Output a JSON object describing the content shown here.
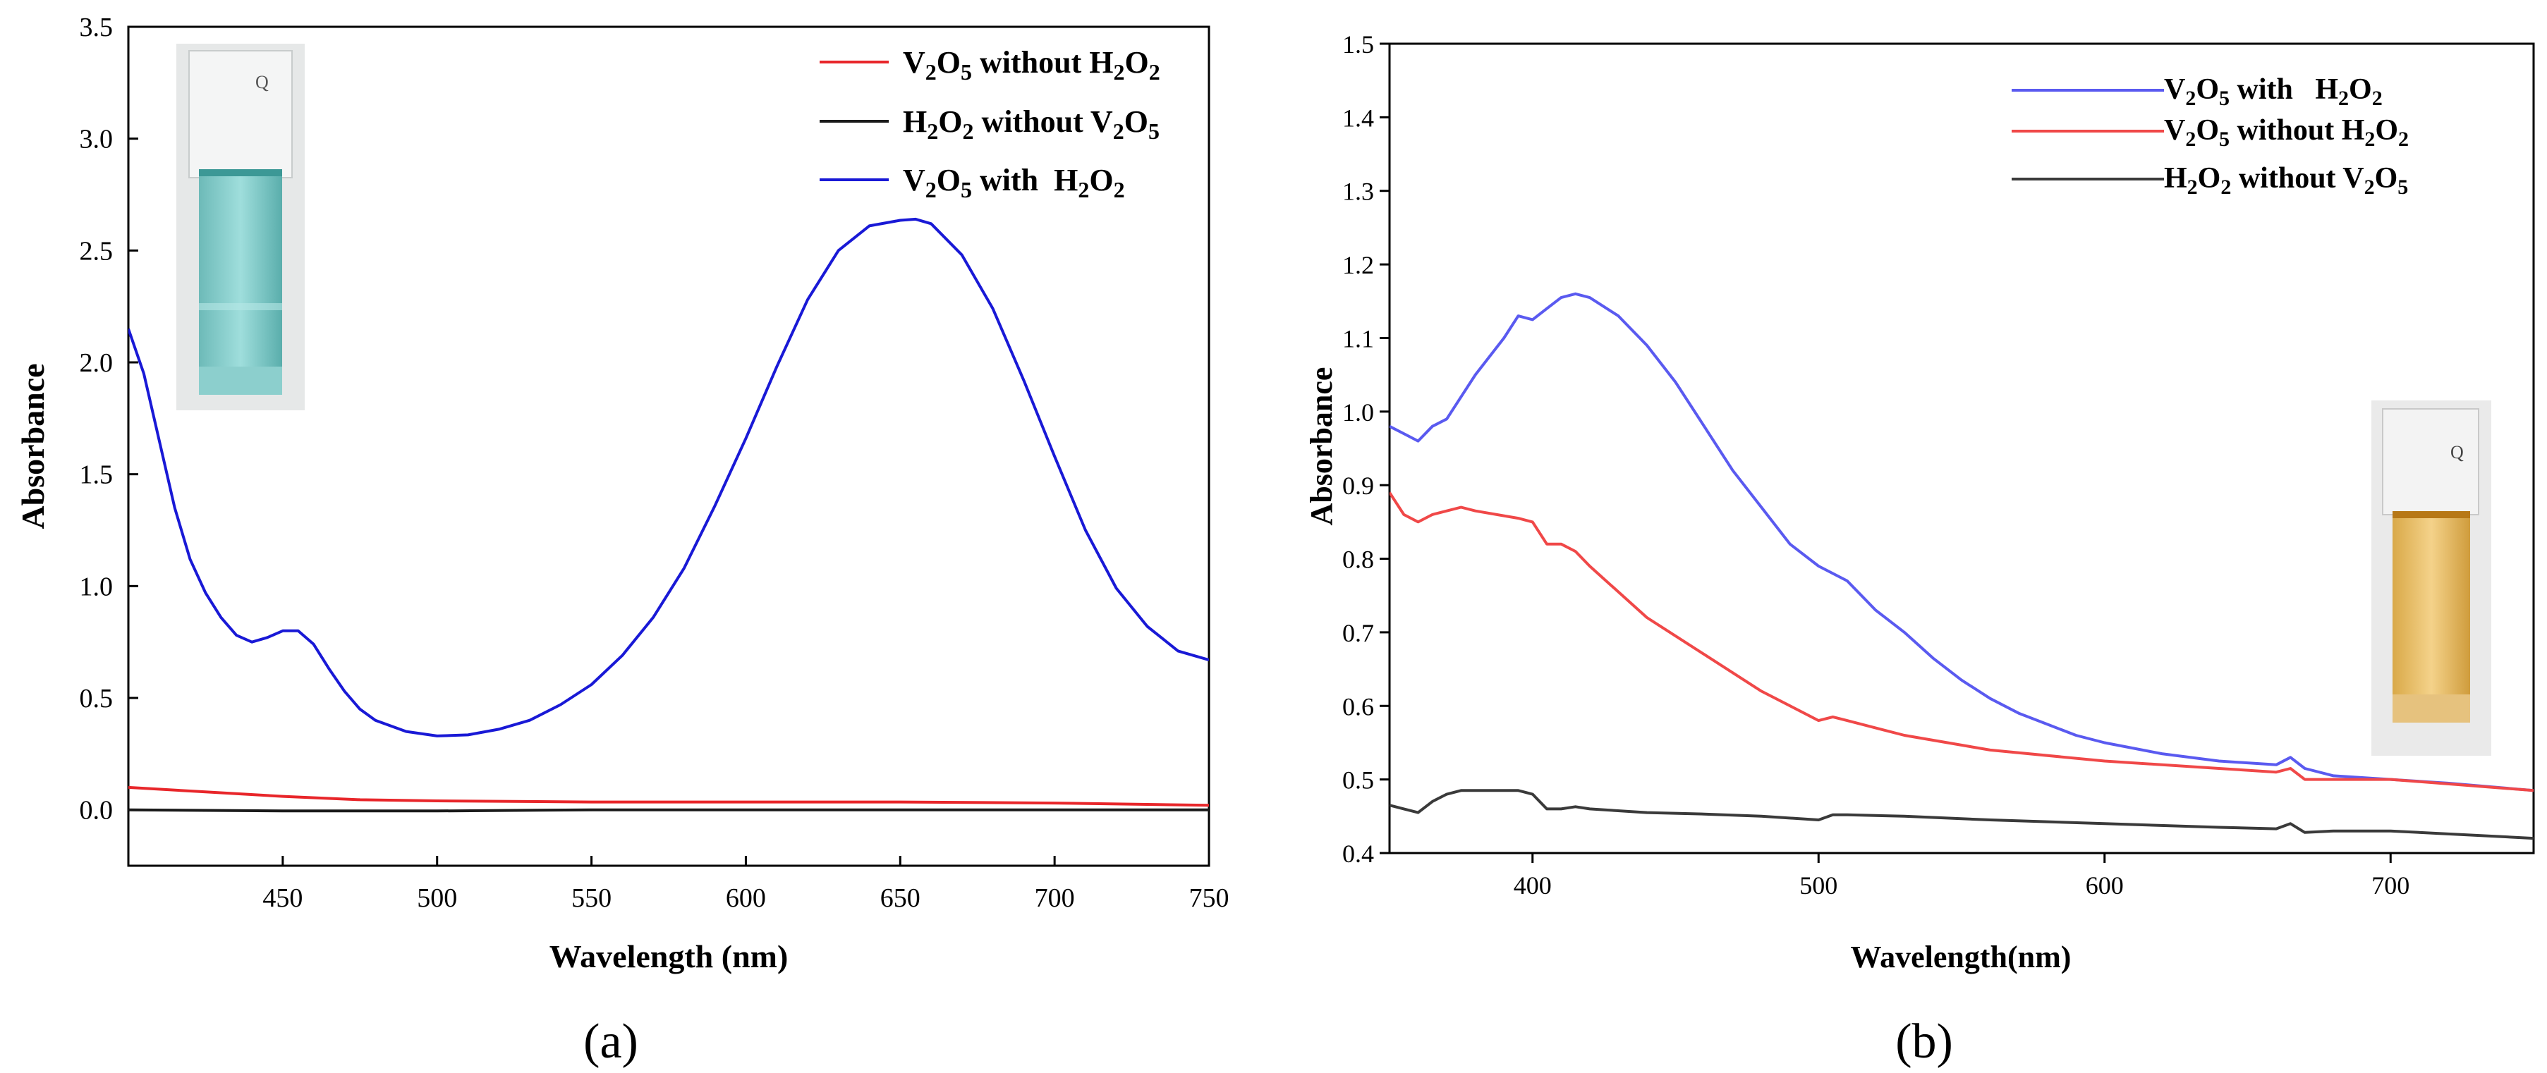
{
  "colors": {
    "red": "#e8262a",
    "black": "#1a1a1a",
    "blue": "#1919d6",
    "blue_b": "#5a5af0",
    "red_b": "#f04848",
    "black_b": "#3a3a3a"
  },
  "chart_data": [
    {
      "type": "line",
      "panel_label": "(a)",
      "xlabel": "Wavelength (nm)",
      "ylabel": "Absorbance",
      "xlim": [
        400,
        750
      ],
      "ylim": [
        -0.25,
        3.5
      ],
      "xticks": [
        450,
        500,
        550,
        600,
        650,
        700,
        750
      ],
      "xtick_labels": [
        "450",
        "500",
        "550",
        "600",
        "650",
        "700",
        "750"
      ],
      "yticks": [
        0,
        0.5,
        1.0,
        1.5,
        2.0,
        2.5,
        3.0,
        3.5
      ],
      "ytick_labels": [
        "0.0",
        "0.5",
        "1.0",
        "1.5",
        "2.0",
        "2.5",
        "3.0",
        "3.5"
      ],
      "legend_position": "top-right",
      "legend": [
        {
          "text": "V",
          "sub1": "2",
          "mid": "O",
          "sub2": "5",
          "rest": " without H",
          "sub3": "2",
          "end": "O",
          "sub4": "2"
        },
        {
          "text": "H",
          "sub1": "2",
          "mid": "O",
          "sub2": "2",
          "rest": " without V",
          "sub3": "2",
          "end": "O",
          "sub4": "5"
        },
        {
          "text": "V",
          "sub1": "2",
          "mid": "O",
          "sub2": "5",
          "rest": " with  H",
          "sub3": "2",
          "end": "O",
          "sub4": "2"
        }
      ],
      "inset": "cuvette-blue",
      "series": [
        {
          "name": "V2O5 without H2O2",
          "color": "#e8262a",
          "x": [
            400,
            425,
            450,
            475,
            500,
            550,
            600,
            650,
            700,
            750
          ],
          "y": [
            0.1,
            0.08,
            0.06,
            0.045,
            0.04,
            0.035,
            0.035,
            0.035,
            0.03,
            0.02
          ]
        },
        {
          "name": "H2O2 without V2O5",
          "color": "#1a1a1a",
          "x": [
            400,
            450,
            500,
            550,
            600,
            650,
            700,
            750
          ],
          "y": [
            0.0,
            -0.005,
            -0.005,
            0.0,
            0.0,
            0.0,
            0.0,
            0.0
          ]
        },
        {
          "name": "V2O5 with H2O2",
          "color": "#1919d6",
          "x": [
            400,
            405,
            410,
            415,
            420,
            425,
            430,
            435,
            440,
            445,
            450,
            455,
            460,
            465,
            470,
            475,
            480,
            490,
            500,
            510,
            520,
            530,
            540,
            550,
            560,
            570,
            580,
            590,
            600,
            610,
            620,
            630,
            640,
            650,
            655,
            660,
            670,
            680,
            690,
            700,
            710,
            720,
            730,
            740,
            750
          ],
          "y": [
            2.15,
            1.95,
            1.65,
            1.35,
            1.12,
            0.97,
            0.86,
            0.78,
            0.75,
            0.77,
            0.8,
            0.8,
            0.74,
            0.63,
            0.53,
            0.45,
            0.4,
            0.35,
            0.33,
            0.335,
            0.36,
            0.4,
            0.47,
            0.56,
            0.69,
            0.86,
            1.08,
            1.36,
            1.66,
            1.98,
            2.28,
            2.5,
            2.61,
            2.635,
            2.64,
            2.62,
            2.48,
            2.24,
            1.92,
            1.58,
            1.25,
            0.99,
            0.82,
            0.71,
            0.67
          ]
        }
      ]
    },
    {
      "type": "line",
      "panel_label": "(b)",
      "xlabel": "Wavelength(nm)",
      "ylabel": "Absorbance",
      "xlim": [
        350,
        750
      ],
      "ylim": [
        0.4,
        1.5
      ],
      "xticks": [
        400,
        500,
        600,
        700
      ],
      "xtick_labels": [
        "400",
        "500",
        "600",
        "700"
      ],
      "yticks": [
        0.4,
        0.5,
        0.6,
        0.7,
        0.8,
        0.9,
        1.0,
        1.1,
        1.2,
        1.3,
        1.4,
        1.5
      ],
      "ytick_labels": [
        "0.4",
        "0.5",
        "0.6",
        "0.7",
        "0.8",
        "0.9",
        "1.0",
        "1.1",
        "1.2",
        "1.3",
        "1.4",
        "1.5"
      ],
      "legend_position": "top-right",
      "legend": [
        {
          "text": "V",
          "sub1": "2",
          "mid": "O",
          "sub2": "5",
          "rest": " with   H",
          "sub3": "2",
          "end": "O",
          "sub4": "2"
        },
        {
          "text": "V",
          "sub1": "2",
          "mid": "O",
          "sub2": "5",
          "rest": " without H",
          "sub3": "2",
          "end": "O",
          "sub4": "2"
        },
        {
          "text": "H",
          "sub1": "2",
          "mid": "O",
          "sub2": "2",
          "rest": " without V",
          "sub3": "2",
          "end": "O",
          "sub4": "5"
        }
      ],
      "inset": "cuvette-yellow",
      "series": [
        {
          "name": "V2O5 with H2O2",
          "color": "#5a5af0",
          "x": [
            350,
            355,
            360,
            365,
            370,
            375,
            380,
            390,
            395,
            400,
            405,
            410,
            415,
            420,
            430,
            440,
            450,
            460,
            470,
            480,
            490,
            500,
            510,
            520,
            530,
            540,
            550,
            560,
            570,
            580,
            590,
            600,
            620,
            640,
            660,
            665,
            670,
            680,
            700,
            720,
            750
          ],
          "y": [
            0.98,
            0.97,
            0.96,
            0.98,
            0.99,
            1.02,
            1.05,
            1.1,
            1.13,
            1.125,
            1.14,
            1.155,
            1.16,
            1.155,
            1.13,
            1.09,
            1.04,
            0.98,
            0.92,
            0.87,
            0.82,
            0.79,
            0.77,
            0.73,
            0.7,
            0.665,
            0.635,
            0.61,
            0.59,
            0.575,
            0.56,
            0.55,
            0.535,
            0.525,
            0.52,
            0.53,
            0.515,
            0.505,
            0.5,
            0.495,
            0.485
          ]
        },
        {
          "name": "V2O5 without H2O2",
          "color": "#f04848",
          "x": [
            350,
            355,
            360,
            365,
            370,
            375,
            380,
            395,
            400,
            405,
            410,
            415,
            420,
            440,
            460,
            480,
            500,
            505,
            510,
            530,
            560,
            600,
            640,
            660,
            665,
            670,
            700,
            750
          ],
          "y": [
            0.89,
            0.86,
            0.85,
            0.86,
            0.865,
            0.87,
            0.865,
            0.855,
            0.85,
            0.82,
            0.82,
            0.81,
            0.79,
            0.72,
            0.67,
            0.62,
            0.58,
            0.585,
            0.58,
            0.56,
            0.54,
            0.525,
            0.515,
            0.51,
            0.515,
            0.5,
            0.5,
            0.485
          ]
        },
        {
          "name": "H2O2 without V2O5",
          "color": "#3a3a3a",
          "x": [
            350,
            355,
            360,
            365,
            370,
            375,
            380,
            395,
            400,
            405,
            410,
            415,
            420,
            440,
            460,
            480,
            500,
            505,
            510,
            530,
            560,
            600,
            640,
            660,
            665,
            670,
            680,
            700,
            750
          ],
          "y": [
            0.465,
            0.46,
            0.455,
            0.47,
            0.48,
            0.485,
            0.485,
            0.485,
            0.48,
            0.46,
            0.46,
            0.463,
            0.46,
            0.455,
            0.453,
            0.45,
            0.445,
            0.452,
            0.452,
            0.45,
            0.445,
            0.44,
            0.435,
            0.433,
            0.44,
            0.428,
            0.43,
            0.43,
            0.42
          ]
        }
      ]
    }
  ]
}
